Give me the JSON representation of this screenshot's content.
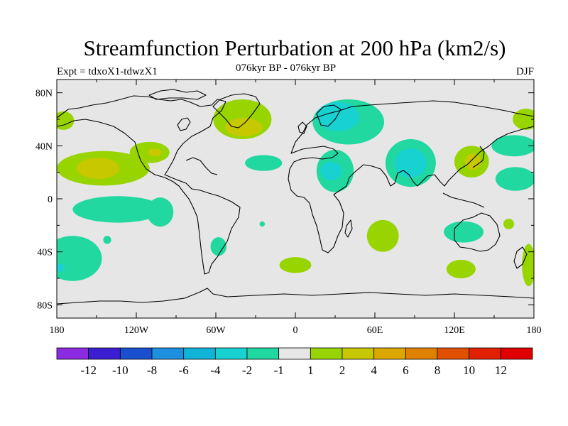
{
  "title": "Streamfunction Perturbation at 200 hPa (km2/s)",
  "left_string": "Expt = tdxoX1-tdwzX1",
  "center_string": "076kyr BP - 076kyr BP",
  "right_string": "DJF",
  "chart_data": {
    "type": "contour-map",
    "title": "Streamfunction Perturbation at 200 hPa (km2/s)",
    "projection": "cylindrical-equidistant",
    "lon_range": [
      -180,
      180
    ],
    "lat_range": [
      -90,
      90
    ],
    "x_ticks": [
      {
        "lon": -180,
        "label": "180"
      },
      {
        "lon": -120,
        "label": "120W"
      },
      {
        "lon": -60,
        "label": "60W"
      },
      {
        "lon": 0,
        "label": "0"
      },
      {
        "lon": 60,
        "label": "60E"
      },
      {
        "lon": 120,
        "label": "120E"
      },
      {
        "lon": 180,
        "label": "180"
      }
    ],
    "y_ticks": [
      {
        "lat": 80,
        "label": "80N"
      },
      {
        "lat": 40,
        "label": "40N"
      },
      {
        "lat": 0,
        "label": "0"
      },
      {
        "lat": -40,
        "label": "40S"
      },
      {
        "lat": -80,
        "label": "80S"
      }
    ],
    "levels": [
      {
        "label": "-12",
        "color": "#8a2be2"
      },
      {
        "label": "-10",
        "color": "#3c1ed2"
      },
      {
        "label": "-8",
        "color": "#1a4fd0"
      },
      {
        "label": "-6",
        "color": "#1e90e0"
      },
      {
        "label": "-4",
        "color": "#10b4d8"
      },
      {
        "label": "-2",
        "color": "#18d2d2"
      },
      {
        "label": "-1",
        "color": "#20d8a0"
      },
      {
        "label": "1",
        "color": "#e6e6e6"
      },
      {
        "label": "2",
        "color": "#98d400"
      },
      {
        "label": "4",
        "color": "#c8c800"
      },
      {
        "label": "6",
        "color": "#dca800"
      },
      {
        "label": "8",
        "color": "#e08000"
      },
      {
        "label": "10",
        "color": "#e05000"
      },
      {
        "label": "12",
        "color": "#e02000"
      },
      {
        "label": "",
        "color": "#e00000"
      }
    ],
    "background_color": "#e6e6e6",
    "anomalies": [
      {
        "lon": -145,
        "lat": 23,
        "rlon": 35,
        "rlat": 13,
        "color": "#98d400"
      },
      {
        "lon": -149,
        "lat": 23,
        "rlon": 16,
        "rlat": 8,
        "color": "#c8c800"
      },
      {
        "lon": -110,
        "lat": 35,
        "rlon": 15,
        "rlat": 8,
        "color": "#98d400"
      },
      {
        "lon": -106,
        "lat": 35,
        "rlon": 5,
        "rlat": 3,
        "color": "#c8c800"
      },
      {
        "lon": -40,
        "lat": 60,
        "rlon": 22,
        "rlat": 15,
        "color": "#98d400"
      },
      {
        "lon": -39,
        "lat": 54,
        "rlon": 14,
        "rlat": 7,
        "color": "#c8c800"
      },
      {
        "lon": -175,
        "lat": 59,
        "rlon": 8,
        "rlat": 7,
        "color": "#98d400"
      },
      {
        "lon": 174,
        "lat": 60,
        "rlon": 10,
        "rlat": 8,
        "color": "#98d400"
      },
      {
        "lon": -168,
        "lat": -45,
        "rlon": 22,
        "rlat": 17,
        "color": "#20d8a0"
      },
      {
        "lon": -178,
        "lat": -52,
        "rlon": 4,
        "rlat": 3,
        "color": "#18d2d2"
      },
      {
        "lon": -142,
        "lat": -31,
        "rlon": 3,
        "rlat": 3,
        "color": "#20d8a0"
      },
      {
        "lon": -134,
        "lat": -8,
        "rlon": 34,
        "rlat": 10,
        "color": "#20d8a0"
      },
      {
        "lon": -102,
        "lat": -10,
        "rlon": 10,
        "rlat": 11,
        "color": "#20d8a0"
      },
      {
        "lon": -58,
        "lat": -36,
        "rlon": 6,
        "rlat": 7,
        "color": "#20d8a0"
      },
      {
        "lon": -24,
        "lat": 27,
        "rlon": 14,
        "rlat": 6,
        "color": "#20d8a0"
      },
      {
        "lon": -25,
        "lat": -19,
        "rlon": 2,
        "rlat": 2,
        "color": "#20d8a0"
      },
      {
        "lon": 0,
        "lat": -50,
        "rlon": 12,
        "rlat": 6,
        "color": "#98d400"
      },
      {
        "lon": 40,
        "lat": 58,
        "rlon": 27,
        "rlat": 17,
        "color": "#20d8a0"
      },
      {
        "lon": 32,
        "lat": 62,
        "rlon": 16,
        "rlat": 11,
        "color": "#18d2d2"
      },
      {
        "lon": 30,
        "lat": 21,
        "rlon": 14,
        "rlat": 16,
        "color": "#20d8a0"
      },
      {
        "lon": 27,
        "lat": 21,
        "rlon": 8,
        "rlat": 7,
        "color": "#18d2d2"
      },
      {
        "lon": 87,
        "lat": 27,
        "rlon": 19,
        "rlat": 18,
        "color": "#20d8a0"
      },
      {
        "lon": 87,
        "lat": 27,
        "rlon": 12,
        "rlat": 11,
        "color": "#18d2d2"
      },
      {
        "lon": 66,
        "lat": -28,
        "rlon": 12,
        "rlat": 12,
        "color": "#98d400"
      },
      {
        "lon": 133,
        "lat": 28,
        "rlon": 13,
        "rlat": 12,
        "color": "#98d400"
      },
      {
        "lon": 134,
        "lat": 28,
        "rlon": 6,
        "rlat": 6,
        "color": "#c8c800"
      },
      {
        "lon": 165,
        "lat": 40,
        "rlon": 17,
        "rlat": 8,
        "color": "#20d8a0"
      },
      {
        "lon": 166,
        "lat": 15,
        "rlon": 15,
        "rlat": 9,
        "color": "#20d8a0"
      },
      {
        "lon": 127,
        "lat": -25,
        "rlon": 15,
        "rlat": 8,
        "color": "#20d8a0"
      },
      {
        "lon": 161,
        "lat": -19,
        "rlon": 4,
        "rlat": 4,
        "color": "#98d400"
      },
      {
        "lon": 125,
        "lat": -53,
        "rlon": 11,
        "rlat": 7,
        "color": "#98d400"
      },
      {
        "lon": 176,
        "lat": -50,
        "rlon": 5,
        "rlat": 16,
        "color": "#98d400"
      }
    ]
  }
}
